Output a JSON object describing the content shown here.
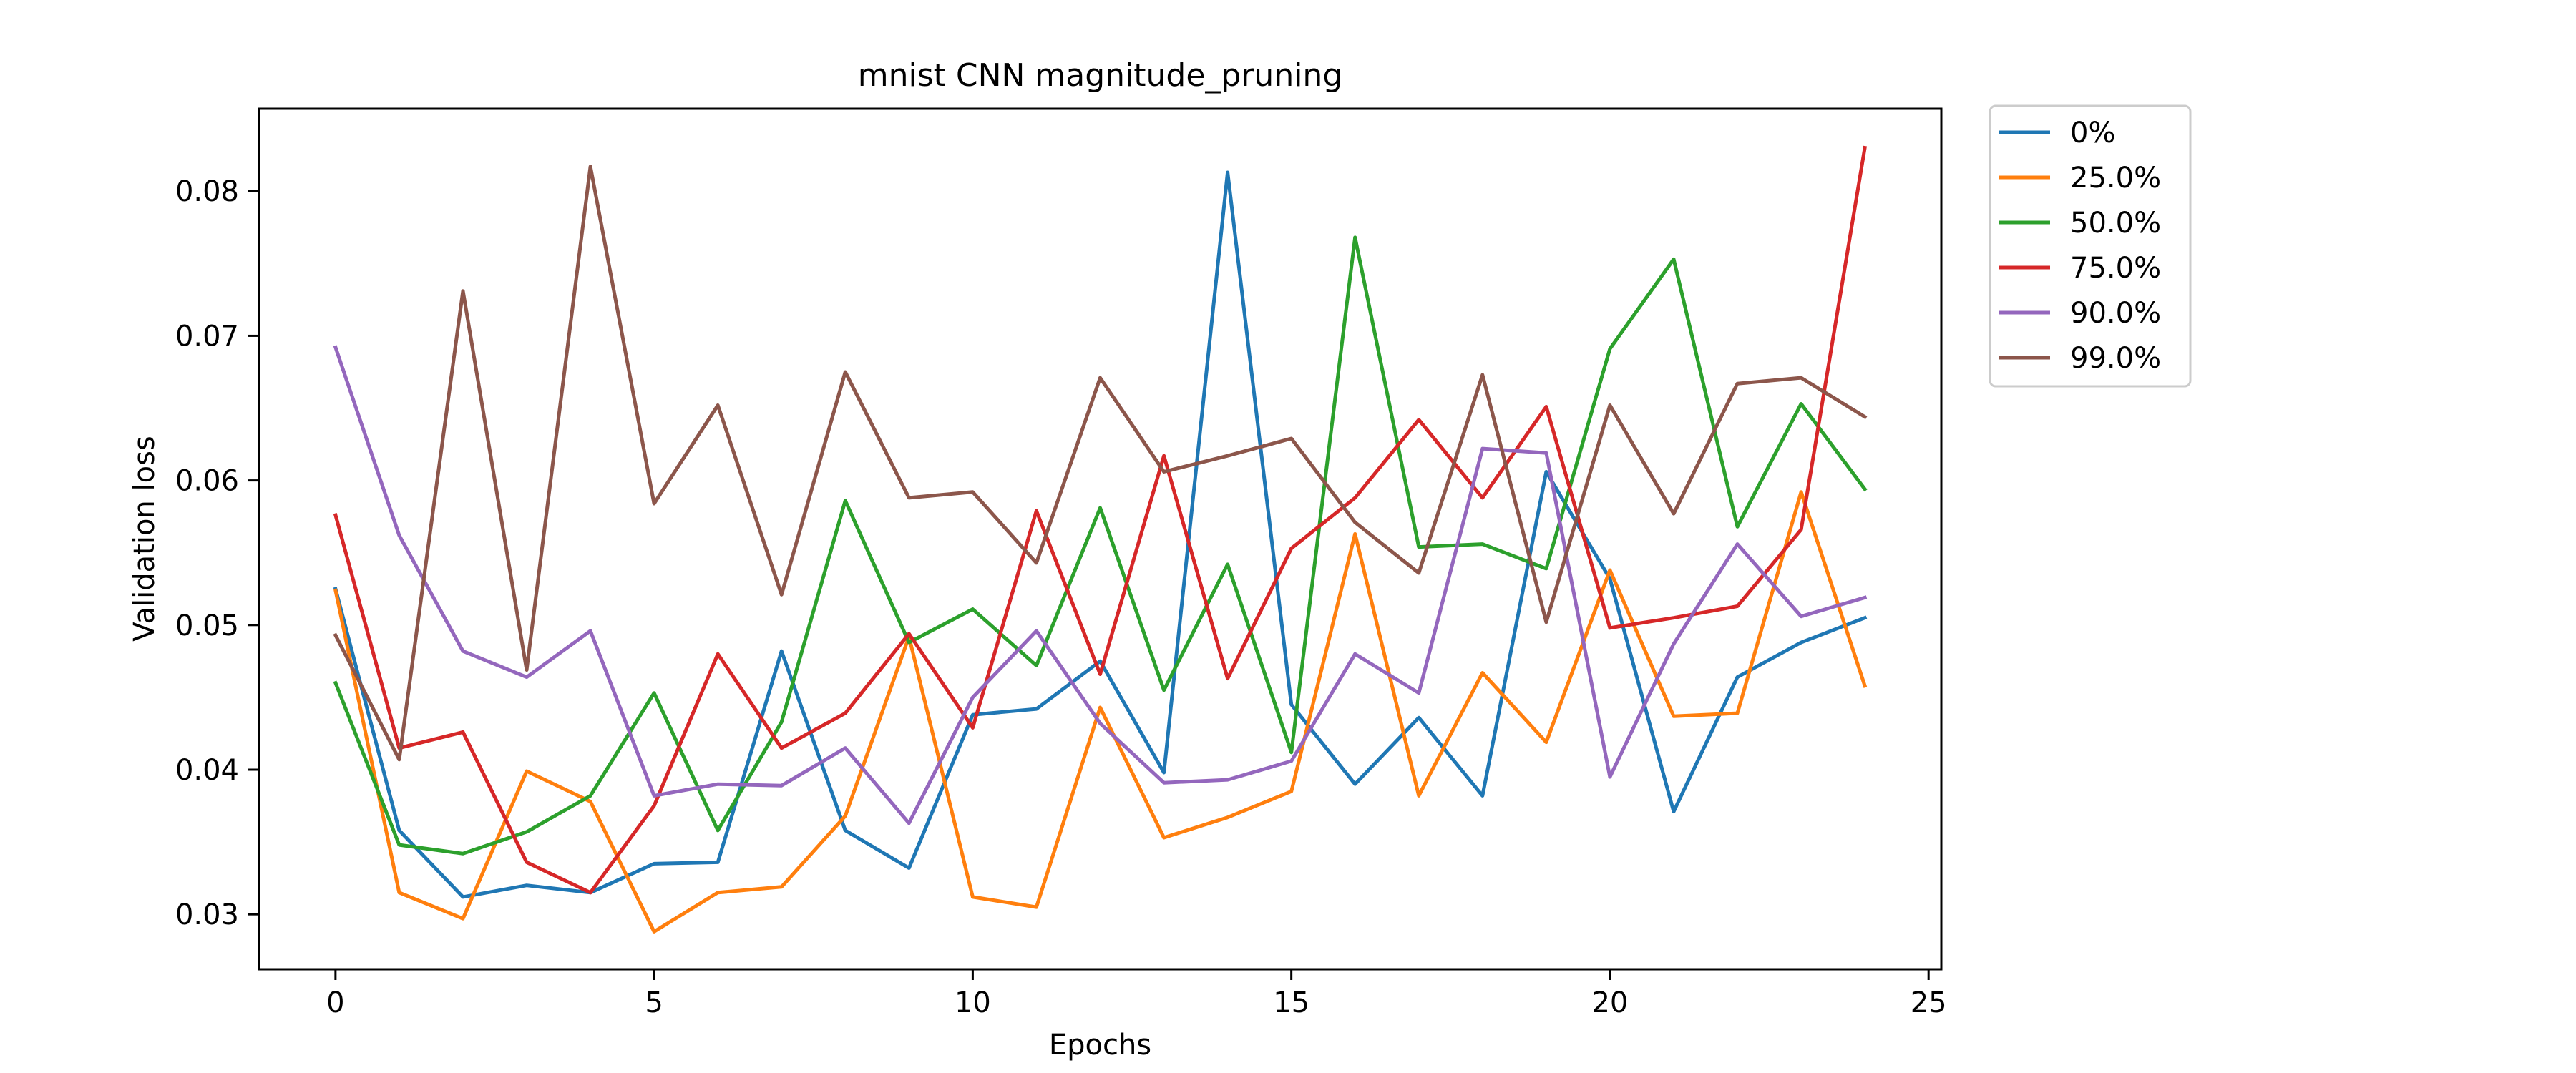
{
  "chart_data": {
    "type": "line",
    "title": "mnist CNN magnitude_pruning",
    "xlabel": "Epochs",
    "ylabel": "Validation loss",
    "xlim": [
      -1.2,
      25.2
    ],
    "ylim": [
      0.0262,
      0.0857
    ],
    "xticks": [
      0,
      5,
      10,
      15,
      20,
      25
    ],
    "yticks": [
      0.03,
      0.04,
      0.05,
      0.06,
      0.07,
      0.08
    ],
    "xtick_labels": [
      "0",
      "5",
      "10",
      "15",
      "20",
      "25"
    ],
    "ytick_labels": [
      "0.03",
      "0.04",
      "0.05",
      "0.06",
      "0.07",
      "0.08"
    ],
    "grid": false,
    "legend_position": "outside-top-right",
    "x": [
      0,
      1,
      2,
      3,
      4,
      5,
      6,
      7,
      8,
      9,
      10,
      11,
      12,
      13,
      14,
      15,
      16,
      17,
      18,
      19,
      20,
      21,
      22,
      23,
      24
    ],
    "series": [
      {
        "name": "0%",
        "color": "#1f77b4",
        "values": [
          0.0525,
          0.0358,
          0.0312,
          0.032,
          0.0315,
          0.0335,
          0.0336,
          0.0482,
          0.0358,
          0.0332,
          0.0438,
          0.0442,
          0.0475,
          0.0398,
          0.0813,
          0.0445,
          0.039,
          0.0436,
          0.0382,
          0.0606,
          0.0532,
          0.0371,
          0.0464,
          0.0488,
          0.0505
        ]
      },
      {
        "name": "25.0%",
        "color": "#ff7f0e",
        "values": [
          0.0524,
          0.0315,
          0.0297,
          0.0399,
          0.0378,
          0.0288,
          0.0315,
          0.0319,
          0.0368,
          0.0492,
          0.0312,
          0.0305,
          0.0443,
          0.0353,
          0.0367,
          0.0385,
          0.0563,
          0.0382,
          0.0467,
          0.0419,
          0.0538,
          0.0437,
          0.0439,
          0.0592,
          0.0458
        ]
      },
      {
        "name": "50.0%",
        "color": "#2ca02c",
        "values": [
          0.046,
          0.0348,
          0.0342,
          0.0357,
          0.0382,
          0.0453,
          0.0358,
          0.0433,
          0.0586,
          0.0488,
          0.0511,
          0.0472,
          0.0581,
          0.0455,
          0.0542,
          0.0412,
          0.0768,
          0.0554,
          0.0556,
          0.0539,
          0.0691,
          0.0753,
          0.0568,
          0.0653,
          0.0594
        ]
      },
      {
        "name": "75.0%",
        "color": "#d62728",
        "values": [
          0.0576,
          0.0415,
          0.0426,
          0.0336,
          0.0315,
          0.0375,
          0.048,
          0.0415,
          0.0439,
          0.0494,
          0.0429,
          0.0579,
          0.0466,
          0.0617,
          0.0463,
          0.0553,
          0.0588,
          0.0642,
          0.0588,
          0.0651,
          0.0498,
          0.0505,
          0.0513,
          0.0566,
          0.083
        ]
      },
      {
        "name": "90.0%",
        "color": "#9467bd",
        "values": [
          0.0692,
          0.0562,
          0.0482,
          0.0464,
          0.0496,
          0.0382,
          0.039,
          0.0389,
          0.0415,
          0.0363,
          0.045,
          0.0496,
          0.0432,
          0.0391,
          0.0393,
          0.0406,
          0.048,
          0.0453,
          0.0622,
          0.0619,
          0.0395,
          0.0487,
          0.0556,
          0.0506,
          0.0519
        ]
      },
      {
        "name": "99.0%",
        "color": "#8c564b",
        "values": [
          0.0493,
          0.0407,
          0.0731,
          0.0469,
          0.0817,
          0.0584,
          0.0652,
          0.0521,
          0.0675,
          0.0588,
          0.0592,
          0.0543,
          0.0671,
          0.0606,
          0.0617,
          0.0629,
          0.0571,
          0.0536,
          0.0673,
          0.0502,
          0.0652,
          0.0577,
          0.0667,
          0.0671,
          0.0644
        ]
      }
    ]
  }
}
